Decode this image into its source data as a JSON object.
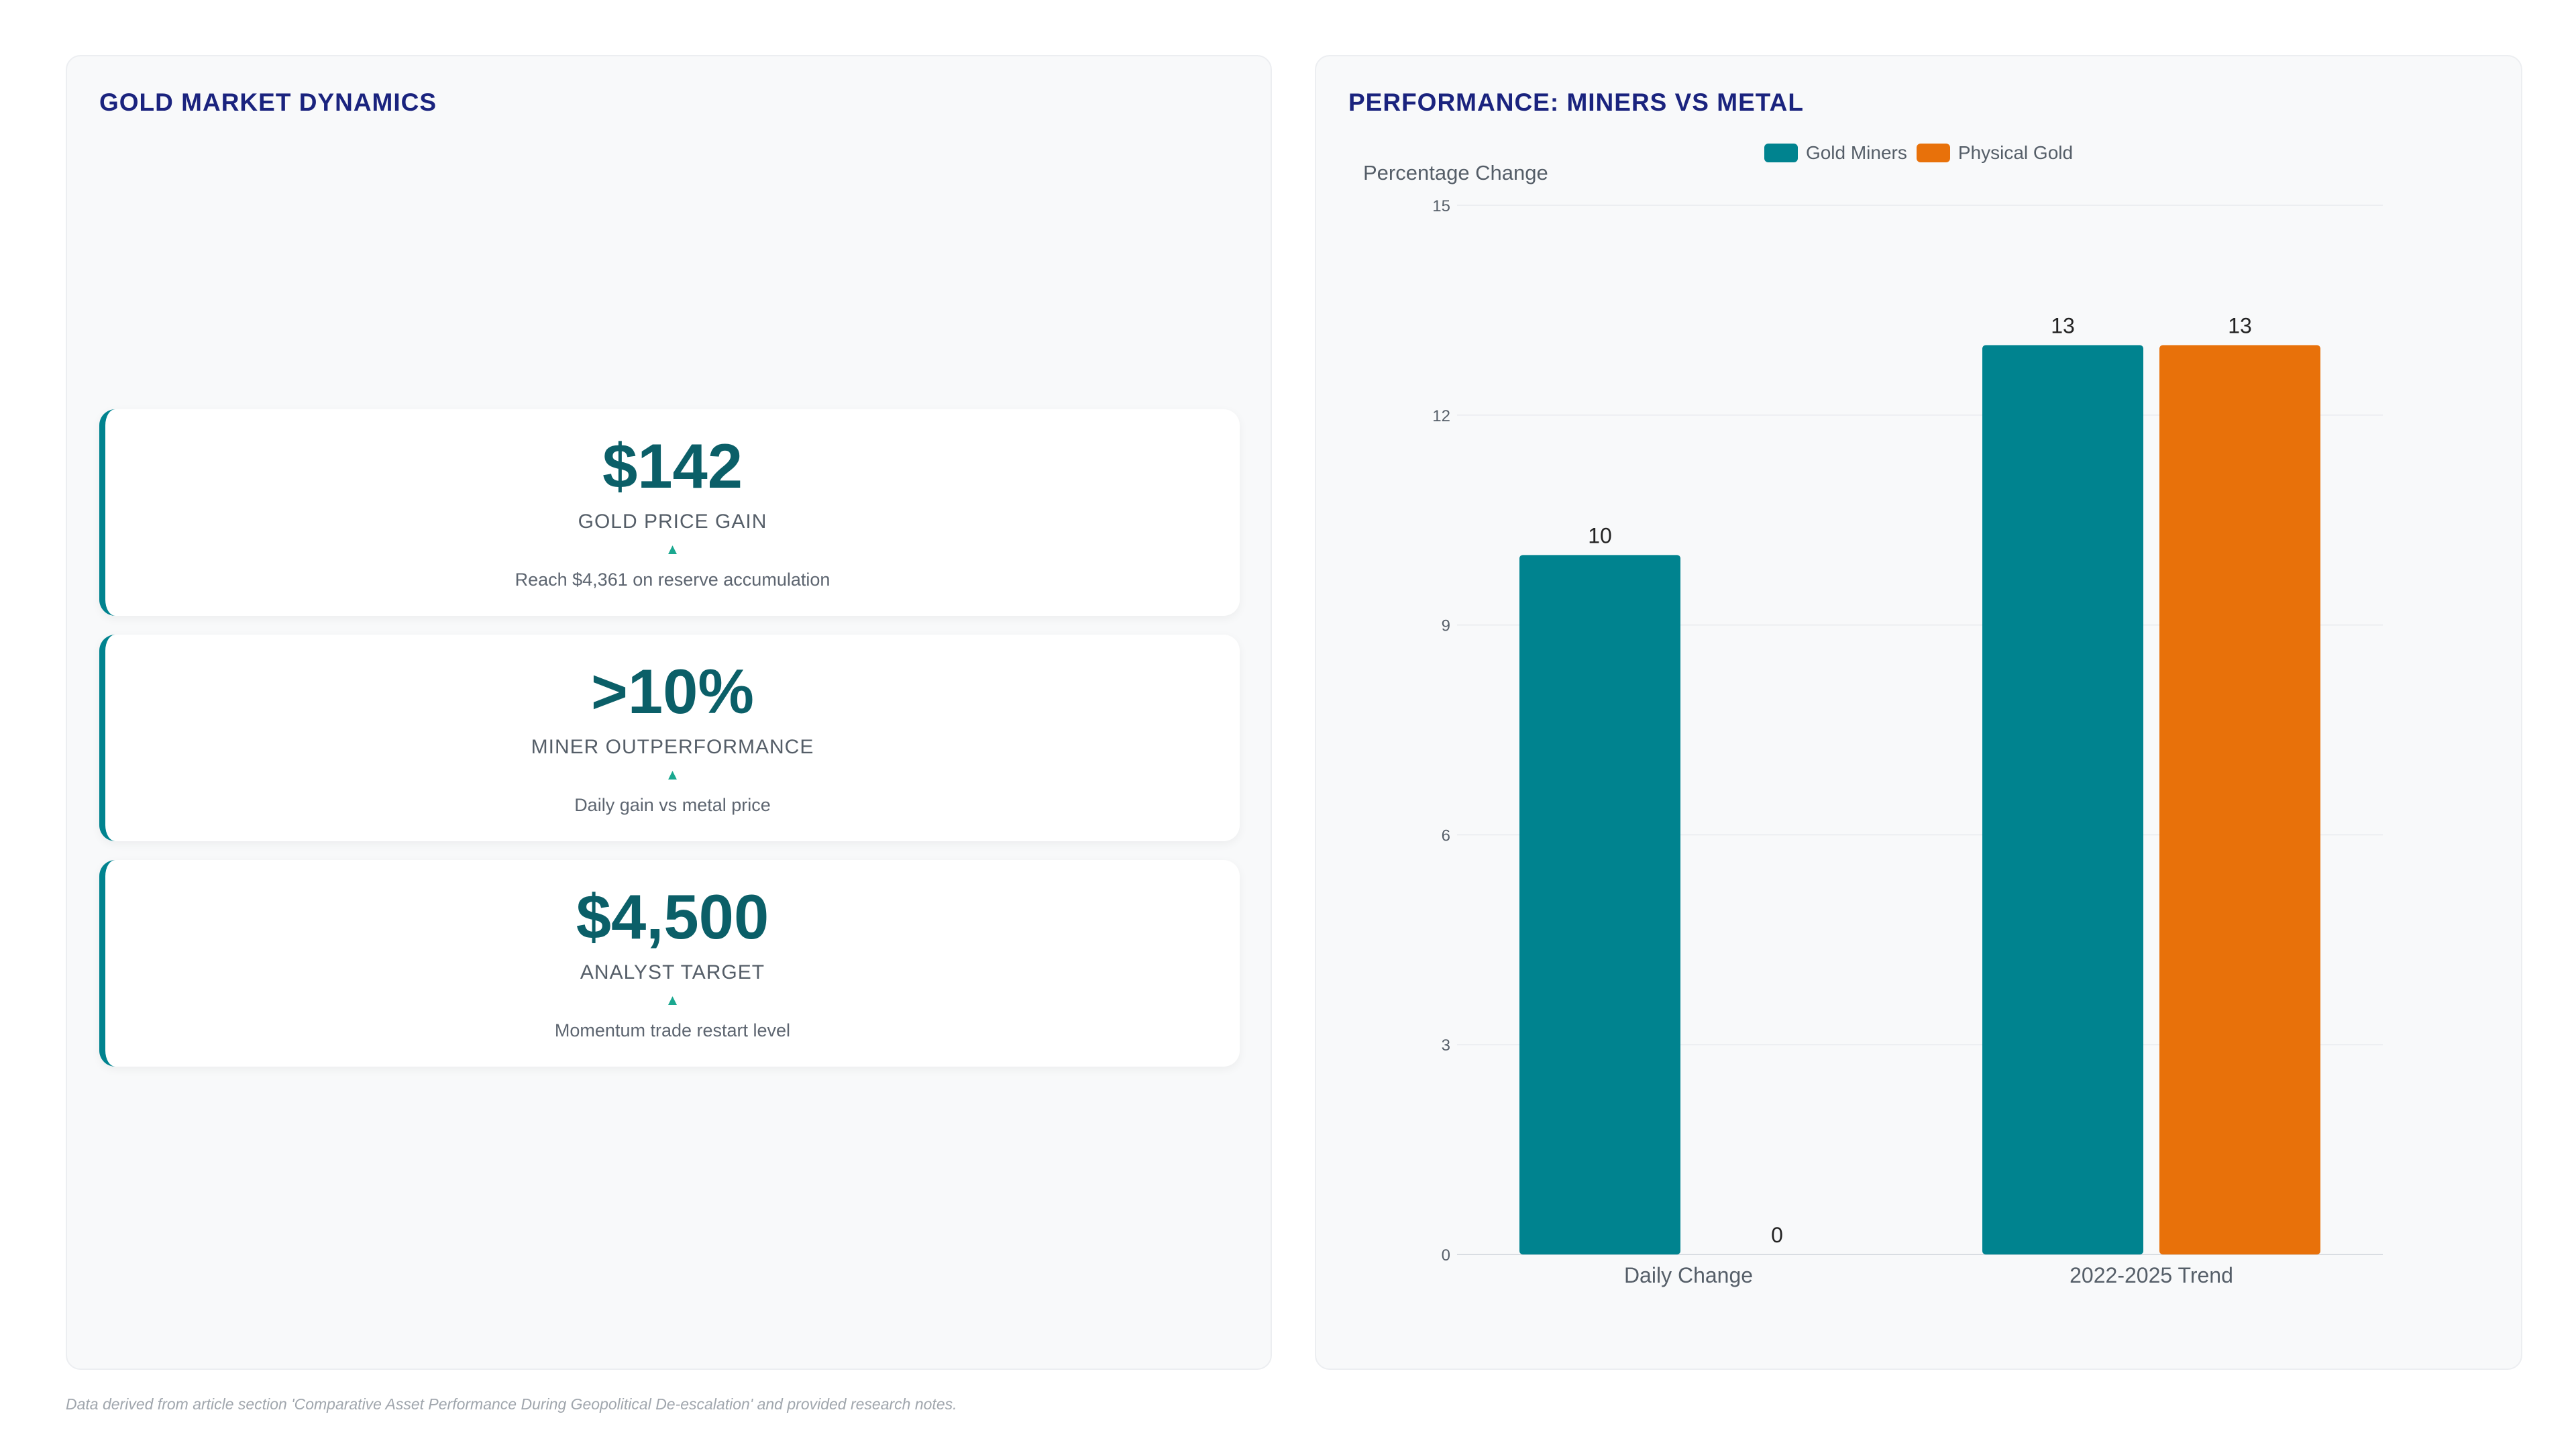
{
  "left_panel": {
    "title": "GOLD MARKET DYNAMICS",
    "cards": [
      {
        "value": "$142",
        "label": "GOLD PRICE GAIN",
        "arrow": "▲",
        "description": "Reach $4,361 on reserve accumulation"
      },
      {
        "value": ">10%",
        "label": "MINER OUTPERFORMANCE",
        "arrow": "▲",
        "description": "Daily gain vs metal price"
      },
      {
        "value": "$4,500",
        "label": "ANALYST TARGET",
        "arrow": "▲",
        "description": "Momentum trade restart level"
      }
    ]
  },
  "right_panel": {
    "title": "PERFORMANCE: MINERS VS METAL"
  },
  "chart_data": {
    "type": "bar",
    "title": "",
    "xlabel": "",
    "ylabel": "Percentage Change",
    "categories": [
      "Daily Change",
      "2022-2025 Trend"
    ],
    "series": [
      {
        "name": "Gold Miners",
        "values": [
          10,
          13
        ],
        "color": "#00838f"
      },
      {
        "name": "Physical Gold",
        "values": [
          0,
          13
        ],
        "color": "#e8710a"
      }
    ],
    "ylim": [
      0,
      15
    ],
    "yticks": [
      0,
      3,
      6,
      9,
      12,
      15
    ],
    "grid": true,
    "legend": "top-center",
    "data_labels": true
  },
  "footnote": "Data derived from article section 'Comparative Asset Performance During Geopolitical De-escalation' and provided research notes."
}
